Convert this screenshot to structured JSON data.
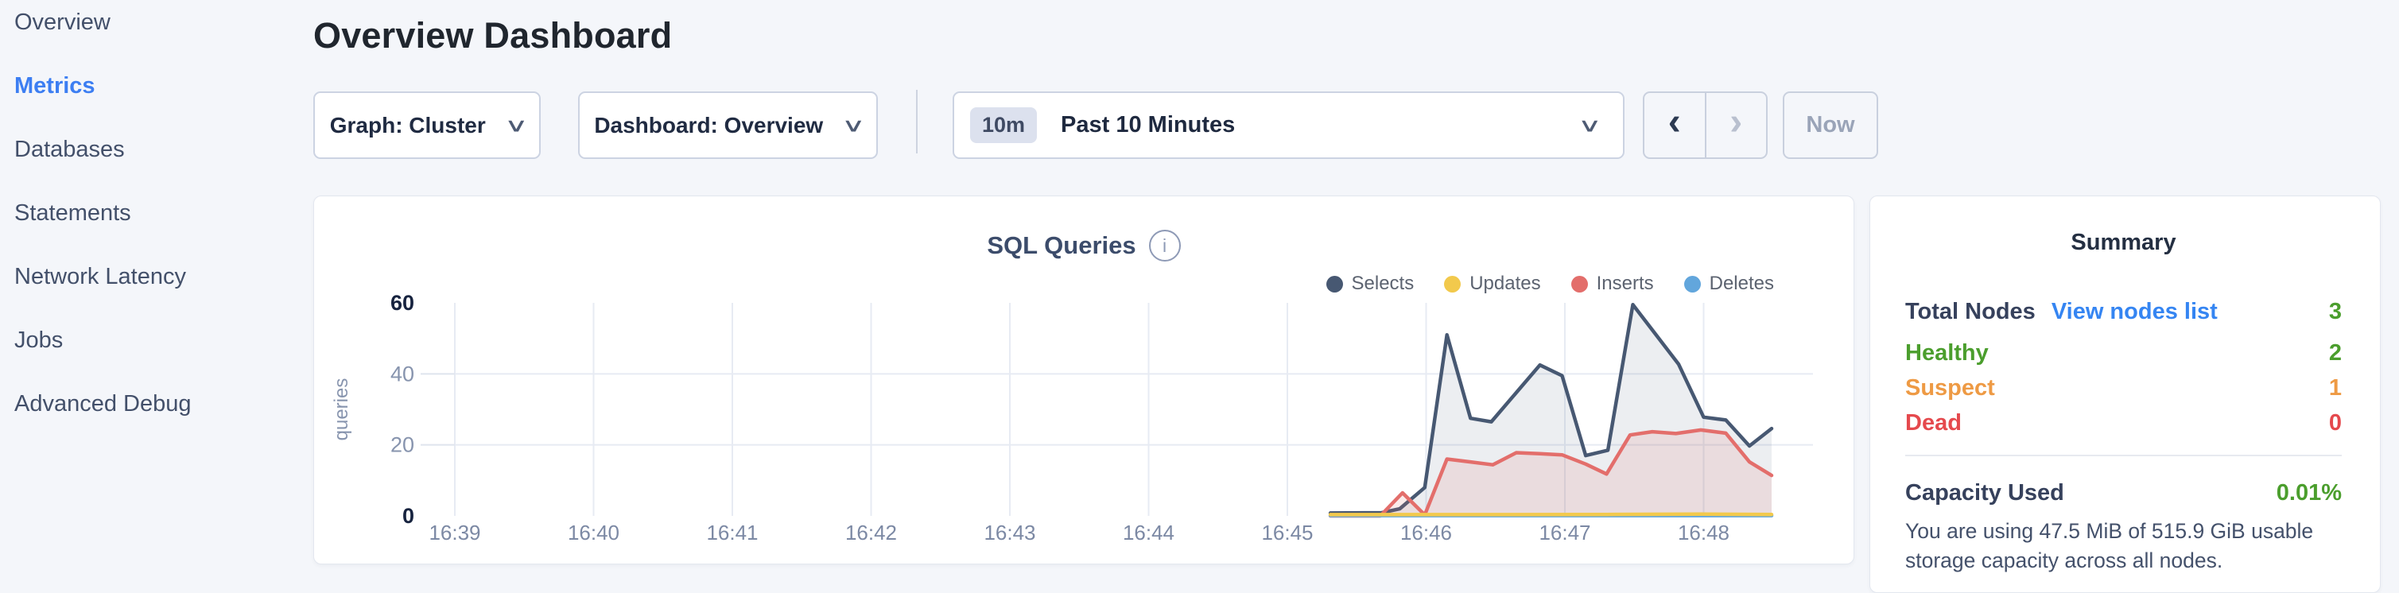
{
  "theme": {
    "accent_blue": "#3c7ef2",
    "link_blue": "#3585f2",
    "green": "#4b9e2d",
    "orange": "#ee9a44",
    "red": "#e5494d"
  },
  "icons": {
    "chevron_down": "∨",
    "chevron_left": "‹",
    "chevron_right": "›",
    "info": "i"
  },
  "sidebar": {
    "items": [
      {
        "label": "Overview"
      },
      {
        "label": "Metrics"
      },
      {
        "label": "Databases"
      },
      {
        "label": "Statements"
      },
      {
        "label": "Network Latency"
      },
      {
        "label": "Jobs"
      },
      {
        "label": "Advanced Debug"
      }
    ],
    "active_item": "Metrics"
  },
  "header": {
    "title": "Overview Dashboard"
  },
  "toolbar": {
    "graph_dropdown": "Graph: Cluster",
    "dashboard_dropdown": "Dashboard: Overview",
    "time_badge": "10m",
    "time_range": "Past 10 Minutes",
    "now_button": "Now"
  },
  "chart_card": {
    "title": "SQL Queries"
  },
  "chart_data": {
    "type": "line",
    "title": "SQL Queries",
    "ylabel": "queries",
    "ylim": [
      0,
      60
    ],
    "y_ticks": [
      0,
      20,
      40,
      60
    ],
    "x_tick_labels": [
      "16:39",
      "16:40",
      "16:41",
      "16:42",
      "16:43",
      "16:44",
      "16:45",
      "16:46",
      "16:47",
      "16:48"
    ],
    "x_unit": "minutes after 16:39",
    "grid": true,
    "legend_position": "top-right",
    "series": [
      {
        "name": "Selects",
        "color": "#475872",
        "fill": "rgba(71,88,114,0.10)",
        "points": [
          [
            6.31,
            0.8
          ],
          [
            6.68,
            0.9
          ],
          [
            6.81,
            2
          ],
          [
            6.99,
            8
          ],
          [
            7.15,
            51
          ],
          [
            7.32,
            27.5
          ],
          [
            7.47,
            26.5
          ],
          [
            7.82,
            42.5
          ],
          [
            7.98,
            39.5
          ],
          [
            8.15,
            17
          ],
          [
            8.31,
            18.5
          ],
          [
            8.49,
            59.5
          ],
          [
            8.82,
            42.7
          ],
          [
            9.0,
            27.8
          ],
          [
            9.16,
            27
          ],
          [
            9.33,
            19.7
          ],
          [
            9.49,
            24.6
          ]
        ]
      },
      {
        "name": "Updates",
        "color": "#f2c94c",
        "fill": "none",
        "points": [
          [
            6.31,
            0.35
          ],
          [
            7.3,
            0.35
          ],
          [
            8.3,
            0.4
          ],
          [
            8.98,
            0.5
          ],
          [
            9.49,
            0.4
          ]
        ]
      },
      {
        "name": "Inserts",
        "color": "#e36e6b",
        "fill": "rgba(227,110,107,0.14)",
        "points": [
          [
            6.31,
            0
          ],
          [
            6.67,
            0
          ],
          [
            6.83,
            6.5
          ],
          [
            6.99,
            0.3
          ],
          [
            7.15,
            16
          ],
          [
            7.32,
            15.2
          ],
          [
            7.48,
            14.4
          ],
          [
            7.65,
            17.8
          ],
          [
            7.82,
            17.5
          ],
          [
            7.98,
            17.2
          ],
          [
            8.15,
            14.6
          ],
          [
            8.3,
            11.8
          ],
          [
            8.47,
            22.8
          ],
          [
            8.63,
            23.7
          ],
          [
            8.8,
            23.2
          ],
          [
            8.98,
            24.2
          ],
          [
            9.16,
            23.3
          ],
          [
            9.33,
            15.2
          ],
          [
            9.49,
            11.4
          ]
        ]
      },
      {
        "name": "Deletes",
        "color": "#62a6dc",
        "fill": "none",
        "points": [
          [
            6.31,
            0.1
          ],
          [
            9.49,
            0.1
          ]
        ]
      }
    ]
  },
  "summary": {
    "title": "Summary",
    "total_nodes": {
      "label": "Total Nodes",
      "link": "View nodes list",
      "value": "3"
    },
    "rows": [
      {
        "label": "Healthy",
        "value": "2",
        "color": "#4b9e2d"
      },
      {
        "label": "Suspect",
        "value": "1",
        "color": "#ee9a44"
      },
      {
        "label": "Dead",
        "value": "0",
        "color": "#e5494d"
      }
    ],
    "capacity": {
      "label": "Capacity Used",
      "value": "0.01%",
      "description": "You are using 47.5 MiB of 515.9 GiB usable storage capacity across all nodes."
    }
  }
}
